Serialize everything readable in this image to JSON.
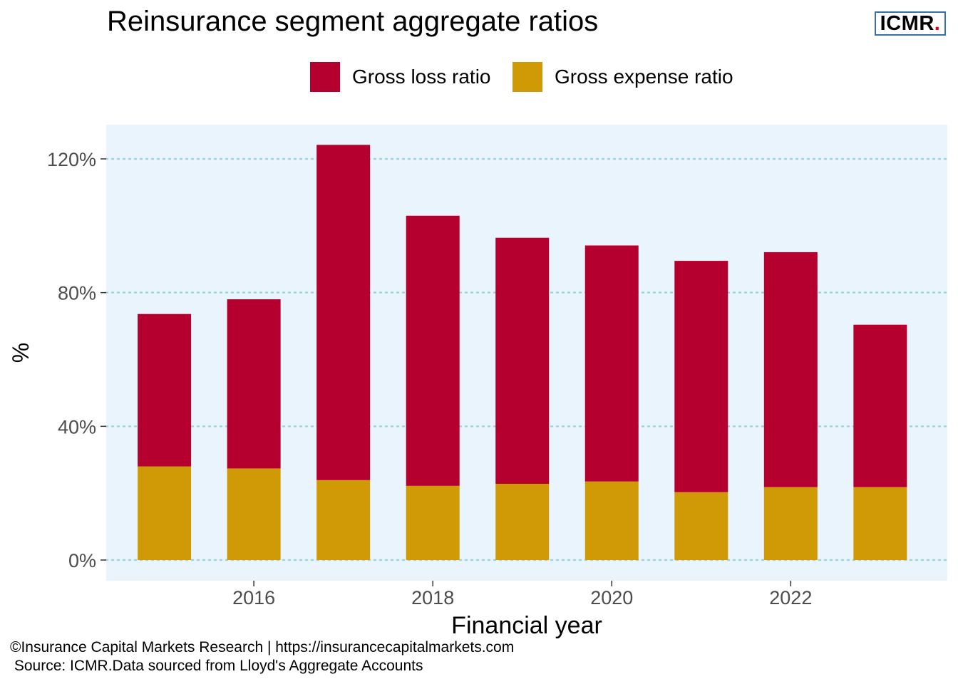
{
  "title": "Reinsurance segment aggregate ratios",
  "logo": {
    "text": "ICMR",
    "dot": "."
  },
  "footer": {
    "line1": "©Insurance Capital Markets Research | https://insurancecapitalmarkets.com",
    "line2": " Source: ICMR.Data sourced from Lloyd's Aggregate Accounts"
  },
  "colors": {
    "loss": "#b5002f",
    "expense": "#cf9a05",
    "panel": "#eaf4fc",
    "grid": "#9fd3dc",
    "logo_border": "#3a6fa8"
  },
  "chart_data": {
    "type": "bar",
    "stacked": true,
    "x": [
      2015,
      2016,
      2017,
      2018,
      2019,
      2020,
      2021,
      2022,
      2023
    ],
    "series": [
      {
        "name": "Gross expense ratio",
        "values": [
          28.0,
          27.4,
          23.9,
          22.2,
          22.8,
          23.5,
          20.3,
          21.8,
          21.8
        ]
      },
      {
        "name": "Gross loss ratio",
        "values": [
          45.6,
          50.6,
          100.3,
          80.8,
          73.6,
          70.6,
          69.2,
          70.3,
          48.6
        ]
      }
    ],
    "legend_order": [
      "Gross loss ratio",
      "Gross expense ratio"
    ],
    "xlabel": "Financial year",
    "ylabel": "%",
    "ylim": [
      -6,
      130
    ],
    "yticks": [
      0,
      40,
      80,
      120
    ],
    "ytick_labels": [
      "0%",
      "40%",
      "80%",
      "120%"
    ],
    "xticks": [
      2016,
      2018,
      2020,
      2022
    ],
    "xtick_labels": [
      "2016",
      "2018",
      "2020",
      "2022"
    ],
    "grid": "horizontal dotted",
    "legend_position": "top"
  }
}
